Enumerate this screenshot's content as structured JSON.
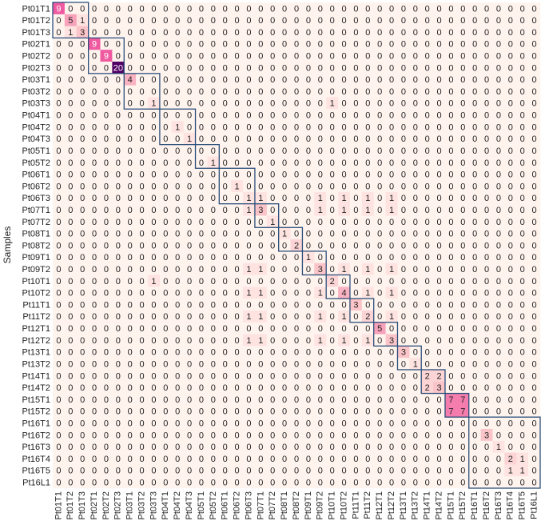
{
  "chart_data": {
    "type": "heatmap",
    "y_label": "Samples",
    "categories": [
      "Pt01T1",
      "Pt01T2",
      "Pt01T3",
      "Pt02T1",
      "Pt02T2",
      "Pt02T3",
      "Pt03T1",
      "Pt03T2",
      "Pt03T3",
      "Pt04T1",
      "Pt04T2",
      "Pt04T3",
      "Pt05T1",
      "Pt05T2",
      "Pt06T1",
      "Pt06T2",
      "Pt06T3",
      "Pt07T1",
      "Pt07T2",
      "Pt08T1",
      "Pt08T2",
      "Pt09T1",
      "Pt09T2",
      "Pt10T1",
      "Pt10T2",
      "Pt11T1",
      "Pt11T2",
      "Pt12T1",
      "Pt12T2",
      "Pt13T1",
      "Pt13T2",
      "Pt14T1",
      "Pt14T2",
      "Pt15T1",
      "Pt15T2",
      "Pt16T1",
      "Pt16T2",
      "Pt16T3",
      "Pt16T4",
      "Pt16T5",
      "Pt16L1"
    ],
    "values": [
      [
        9,
        0,
        0,
        0,
        0,
        0,
        0,
        0,
        0,
        0,
        0,
        0,
        0,
        0,
        0,
        0,
        0,
        0,
        0,
        0,
        0,
        0,
        0,
        0,
        0,
        0,
        0,
        0,
        0,
        0,
        0,
        0,
        0,
        0,
        0,
        0,
        0,
        0,
        0,
        0,
        0
      ],
      [
        0,
        5,
        1,
        0,
        0,
        0,
        0,
        0,
        0,
        0,
        0,
        0,
        0,
        0,
        0,
        0,
        0,
        0,
        0,
        0,
        0,
        0,
        0,
        0,
        0,
        0,
        0,
        0,
        0,
        0,
        0,
        0,
        0,
        0,
        0,
        0,
        0,
        0,
        0,
        0,
        0
      ],
      [
        0,
        1,
        3,
        0,
        0,
        0,
        0,
        0,
        0,
        0,
        0,
        0,
        0,
        0,
        0,
        0,
        0,
        0,
        0,
        0,
        0,
        0,
        0,
        0,
        0,
        0,
        0,
        0,
        0,
        0,
        0,
        0,
        0,
        0,
        0,
        0,
        0,
        0,
        0,
        0,
        0
      ],
      [
        0,
        0,
        0,
        9,
        0,
        0,
        0,
        0,
        0,
        0,
        0,
        0,
        0,
        0,
        0,
        0,
        0,
        0,
        0,
        0,
        0,
        0,
        0,
        0,
        0,
        0,
        0,
        0,
        0,
        0,
        0,
        0,
        0,
        0,
        0,
        0,
        0,
        0,
        0,
        0,
        0
      ],
      [
        0,
        0,
        0,
        0,
        9,
        0,
        0,
        0,
        0,
        0,
        0,
        0,
        0,
        0,
        0,
        0,
        0,
        0,
        0,
        0,
        0,
        0,
        0,
        0,
        0,
        0,
        0,
        0,
        0,
        0,
        0,
        0,
        0,
        0,
        0,
        0,
        0,
        0,
        0,
        0,
        0
      ],
      [
        0,
        0,
        0,
        0,
        0,
        20,
        0,
        0,
        0,
        0,
        0,
        0,
        0,
        0,
        0,
        0,
        0,
        0,
        0,
        0,
        0,
        0,
        0,
        0,
        0,
        0,
        0,
        0,
        0,
        0,
        0,
        0,
        0,
        0,
        0,
        0,
        0,
        0,
        0,
        0,
        0
      ],
      [
        0,
        0,
        0,
        0,
        0,
        0,
        4,
        0,
        0,
        0,
        0,
        0,
        0,
        0,
        0,
        0,
        0,
        0,
        0,
        0,
        0,
        0,
        0,
        0,
        0,
        0,
        0,
        0,
        0,
        0,
        0,
        0,
        0,
        0,
        0,
        0,
        0,
        0,
        0,
        0,
        0
      ],
      [
        0,
        0,
        0,
        0,
        0,
        0,
        0,
        0,
        0,
        0,
        0,
        0,
        0,
        0,
        0,
        0,
        0,
        0,
        0,
        0,
        0,
        0,
        0,
        0,
        0,
        0,
        0,
        0,
        0,
        0,
        0,
        0,
        0,
        0,
        0,
        0,
        0,
        0,
        0,
        0,
        0
      ],
      [
        0,
        0,
        0,
        0,
        0,
        0,
        0,
        0,
        1,
        0,
        0,
        0,
        0,
        0,
        0,
        0,
        0,
        0,
        0,
        0,
        0,
        0,
        0,
        1,
        0,
        0,
        0,
        0,
        0,
        0,
        0,
        0,
        0,
        0,
        0,
        0,
        0,
        0,
        0,
        0,
        0
      ],
      [
        0,
        0,
        0,
        0,
        0,
        0,
        0,
        0,
        0,
        0,
        0,
        0,
        0,
        0,
        0,
        0,
        0,
        0,
        0,
        0,
        0,
        0,
        0,
        0,
        0,
        0,
        0,
        0,
        0,
        0,
        0,
        0,
        0,
        0,
        0,
        0,
        0,
        0,
        0,
        0,
        0
      ],
      [
        0,
        0,
        0,
        0,
        0,
        0,
        0,
        0,
        0,
        0,
        1,
        0,
        0,
        0,
        0,
        0,
        0,
        0,
        0,
        0,
        0,
        0,
        0,
        0,
        0,
        0,
        0,
        0,
        0,
        0,
        0,
        0,
        0,
        0,
        0,
        0,
        0,
        0,
        0,
        0,
        0
      ],
      [
        0,
        0,
        0,
        0,
        0,
        0,
        0,
        0,
        0,
        0,
        0,
        1,
        0,
        0,
        0,
        0,
        0,
        0,
        0,
        0,
        0,
        0,
        0,
        0,
        0,
        0,
        0,
        0,
        0,
        0,
        0,
        0,
        0,
        0,
        0,
        0,
        0,
        0,
        0,
        0,
        0
      ],
      [
        0,
        0,
        0,
        0,
        0,
        0,
        0,
        0,
        0,
        0,
        0,
        0,
        0,
        0,
        0,
        0,
        0,
        0,
        0,
        0,
        0,
        0,
        0,
        0,
        0,
        0,
        0,
        0,
        0,
        0,
        0,
        0,
        0,
        0,
        0,
        0,
        0,
        0,
        0,
        0,
        0
      ],
      [
        0,
        0,
        0,
        0,
        0,
        0,
        0,
        0,
        0,
        0,
        0,
        0,
        0,
        1,
        0,
        0,
        0,
        0,
        0,
        0,
        0,
        0,
        0,
        0,
        0,
        0,
        0,
        0,
        0,
        0,
        0,
        0,
        0,
        0,
        0,
        0,
        0,
        0,
        0,
        0,
        0
      ],
      [
        0,
        0,
        0,
        0,
        0,
        0,
        0,
        0,
        0,
        0,
        0,
        0,
        0,
        0,
        0,
        0,
        0,
        0,
        0,
        0,
        0,
        0,
        0,
        0,
        0,
        0,
        0,
        0,
        0,
        0,
        0,
        0,
        0,
        0,
        0,
        0,
        0,
        0,
        0,
        0,
        0
      ],
      [
        0,
        0,
        0,
        0,
        0,
        0,
        0,
        0,
        0,
        0,
        0,
        0,
        0,
        0,
        0,
        1,
        0,
        0,
        0,
        0,
        0,
        0,
        0,
        0,
        0,
        0,
        0,
        0,
        0,
        0,
        0,
        0,
        0,
        0,
        0,
        0,
        0,
        0,
        0,
        0,
        0
      ],
      [
        0,
        0,
        0,
        0,
        0,
        0,
        0,
        0,
        0,
        0,
        0,
        0,
        0,
        0,
        0,
        0,
        1,
        1,
        0,
        0,
        0,
        0,
        1,
        0,
        1,
        0,
        1,
        0,
        1,
        0,
        0,
        0,
        0,
        0,
        0,
        0,
        0,
        0,
        0,
        0,
        0
      ],
      [
        0,
        0,
        0,
        0,
        0,
        0,
        0,
        0,
        0,
        0,
        0,
        0,
        0,
        0,
        0,
        0,
        1,
        3,
        0,
        0,
        0,
        0,
        1,
        0,
        1,
        0,
        1,
        0,
        1,
        0,
        0,
        0,
        0,
        0,
        0,
        0,
        0,
        0,
        0,
        0,
        0
      ],
      [
        0,
        0,
        0,
        0,
        0,
        0,
        0,
        0,
        0,
        0,
        0,
        0,
        0,
        0,
        0,
        0,
        0,
        0,
        1,
        0,
        0,
        0,
        0,
        0,
        0,
        0,
        0,
        0,
        0,
        0,
        0,
        0,
        0,
        0,
        0,
        0,
        0,
        0,
        0,
        0,
        0
      ],
      [
        0,
        0,
        0,
        0,
        0,
        0,
        0,
        0,
        0,
        0,
        0,
        0,
        0,
        0,
        0,
        0,
        0,
        0,
        0,
        1,
        0,
        0,
        0,
        0,
        0,
        0,
        0,
        0,
        0,
        0,
        0,
        0,
        0,
        0,
        0,
        0,
        0,
        0,
        0,
        0,
        0
      ],
      [
        0,
        0,
        0,
        0,
        0,
        0,
        0,
        0,
        0,
        0,
        0,
        0,
        0,
        0,
        0,
        0,
        0,
        0,
        0,
        0,
        2,
        0,
        0,
        0,
        0,
        0,
        0,
        0,
        0,
        0,
        0,
        0,
        0,
        0,
        0,
        0,
        0,
        0,
        0,
        0,
        0
      ],
      [
        0,
        0,
        0,
        0,
        0,
        0,
        0,
        0,
        0,
        0,
        0,
        0,
        0,
        0,
        0,
        0,
        0,
        0,
        0,
        0,
        0,
        1,
        0,
        0,
        0,
        0,
        0,
        0,
        0,
        0,
        0,
        0,
        0,
        0,
        0,
        0,
        0,
        0,
        0,
        0,
        0
      ],
      [
        0,
        0,
        0,
        0,
        0,
        0,
        0,
        0,
        0,
        0,
        0,
        0,
        0,
        0,
        0,
        0,
        1,
        1,
        0,
        0,
        0,
        0,
        3,
        0,
        1,
        0,
        1,
        0,
        1,
        0,
        0,
        0,
        0,
        0,
        0,
        0,
        0,
        0,
        0,
        0,
        0
      ],
      [
        0,
        0,
        0,
        0,
        0,
        0,
        0,
        0,
        1,
        0,
        0,
        0,
        0,
        0,
        0,
        0,
        0,
        0,
        0,
        0,
        0,
        0,
        0,
        2,
        0,
        0,
        0,
        0,
        0,
        0,
        0,
        0,
        0,
        0,
        0,
        0,
        0,
        0,
        0,
        0,
        0
      ],
      [
        0,
        0,
        0,
        0,
        0,
        0,
        0,
        0,
        0,
        0,
        0,
        0,
        0,
        0,
        0,
        0,
        1,
        1,
        0,
        0,
        0,
        0,
        1,
        0,
        4,
        0,
        1,
        0,
        1,
        0,
        0,
        0,
        0,
        0,
        0,
        0,
        0,
        0,
        0,
        0,
        0
      ],
      [
        0,
        0,
        0,
        0,
        0,
        0,
        0,
        0,
        0,
        0,
        0,
        0,
        0,
        0,
        0,
        0,
        0,
        0,
        0,
        0,
        0,
        0,
        0,
        0,
        0,
        3,
        0,
        0,
        0,
        0,
        0,
        0,
        0,
        0,
        0,
        0,
        0,
        0,
        0,
        0,
        0
      ],
      [
        0,
        0,
        0,
        0,
        0,
        0,
        0,
        0,
        0,
        0,
        0,
        0,
        0,
        0,
        0,
        0,
        1,
        1,
        0,
        0,
        0,
        0,
        1,
        0,
        1,
        0,
        2,
        0,
        1,
        0,
        0,
        0,
        0,
        0,
        0,
        0,
        0,
        0,
        0,
        0,
        0
      ],
      [
        0,
        0,
        0,
        0,
        0,
        0,
        0,
        0,
        0,
        0,
        0,
        0,
        0,
        0,
        0,
        0,
        0,
        0,
        0,
        0,
        0,
        0,
        0,
        0,
        0,
        0,
        0,
        5,
        0,
        0,
        0,
        0,
        0,
        0,
        0,
        0,
        0,
        0,
        0,
        0,
        0
      ],
      [
        0,
        0,
        0,
        0,
        0,
        0,
        0,
        0,
        0,
        0,
        0,
        0,
        0,
        0,
        0,
        0,
        1,
        1,
        0,
        0,
        0,
        0,
        1,
        0,
        1,
        0,
        1,
        0,
        3,
        0,
        0,
        0,
        0,
        0,
        0,
        0,
        0,
        0,
        0,
        0,
        0
      ],
      [
        0,
        0,
        0,
        0,
        0,
        0,
        0,
        0,
        0,
        0,
        0,
        0,
        0,
        0,
        0,
        0,
        0,
        0,
        0,
        0,
        0,
        0,
        0,
        0,
        0,
        0,
        0,
        0,
        0,
        3,
        0,
        0,
        0,
        0,
        0,
        0,
        0,
        0,
        0,
        0,
        0
      ],
      [
        0,
        0,
        0,
        0,
        0,
        0,
        0,
        0,
        0,
        0,
        0,
        0,
        0,
        0,
        0,
        0,
        0,
        0,
        0,
        0,
        0,
        0,
        0,
        0,
        0,
        0,
        0,
        0,
        0,
        0,
        1,
        0,
        0,
        0,
        0,
        0,
        0,
        0,
        0,
        0,
        0
      ],
      [
        0,
        0,
        0,
        0,
        0,
        0,
        0,
        0,
        0,
        0,
        0,
        0,
        0,
        0,
        0,
        0,
        0,
        0,
        0,
        0,
        0,
        0,
        0,
        0,
        0,
        0,
        0,
        0,
        0,
        0,
        0,
        2,
        2,
        0,
        0,
        0,
        0,
        0,
        0,
        0,
        0
      ],
      [
        0,
        0,
        0,
        0,
        0,
        0,
        0,
        0,
        0,
        0,
        0,
        0,
        0,
        0,
        0,
        0,
        0,
        0,
        0,
        0,
        0,
        0,
        0,
        0,
        0,
        0,
        0,
        0,
        0,
        0,
        0,
        2,
        3,
        0,
        0,
        0,
        0,
        0,
        0,
        0,
        0
      ],
      [
        0,
        0,
        0,
        0,
        0,
        0,
        0,
        0,
        0,
        0,
        0,
        0,
        0,
        0,
        0,
        0,
        0,
        0,
        0,
        0,
        0,
        0,
        0,
        0,
        0,
        0,
        0,
        0,
        0,
        0,
        0,
        0,
        0,
        7,
        7,
        0,
        0,
        0,
        0,
        0,
        0
      ],
      [
        0,
        0,
        0,
        0,
        0,
        0,
        0,
        0,
        0,
        0,
        0,
        0,
        0,
        0,
        0,
        0,
        0,
        0,
        0,
        0,
        0,
        0,
        0,
        0,
        0,
        0,
        0,
        0,
        0,
        0,
        0,
        0,
        0,
        7,
        7,
        0,
        0,
        0,
        0,
        0,
        0
      ],
      [
        0,
        0,
        0,
        0,
        0,
        0,
        0,
        0,
        0,
        0,
        0,
        0,
        0,
        0,
        0,
        0,
        0,
        0,
        0,
        0,
        0,
        0,
        0,
        0,
        0,
        0,
        0,
        0,
        0,
        0,
        0,
        0,
        0,
        0,
        0,
        0,
        0,
        0,
        0,
        0,
        0
      ],
      [
        0,
        0,
        0,
        0,
        0,
        0,
        0,
        0,
        0,
        0,
        0,
        0,
        0,
        0,
        0,
        0,
        0,
        0,
        0,
        0,
        0,
        0,
        0,
        0,
        0,
        0,
        0,
        0,
        0,
        0,
        0,
        0,
        0,
        0,
        0,
        0,
        3,
        0,
        0,
        0,
        0
      ],
      [
        0,
        0,
        0,
        0,
        0,
        0,
        0,
        0,
        0,
        0,
        0,
        0,
        0,
        0,
        0,
        0,
        0,
        0,
        0,
        0,
        0,
        0,
        0,
        0,
        0,
        0,
        0,
        0,
        0,
        0,
        0,
        0,
        0,
        0,
        0,
        0,
        0,
        1,
        0,
        0,
        0
      ],
      [
        0,
        0,
        0,
        0,
        0,
        0,
        0,
        0,
        0,
        0,
        0,
        0,
        0,
        0,
        0,
        0,
        0,
        0,
        0,
        0,
        0,
        0,
        0,
        0,
        0,
        0,
        0,
        0,
        0,
        0,
        0,
        0,
        0,
        0,
        0,
        0,
        0,
        0,
        2,
        1,
        0
      ],
      [
        0,
        0,
        0,
        0,
        0,
        0,
        0,
        0,
        0,
        0,
        0,
        0,
        0,
        0,
        0,
        0,
        0,
        0,
        0,
        0,
        0,
        0,
        0,
        0,
        0,
        0,
        0,
        0,
        0,
        0,
        0,
        0,
        0,
        0,
        0,
        0,
        0,
        0,
        1,
        1,
        0
      ],
      [
        0,
        0,
        0,
        0,
        0,
        0,
        0,
        0,
        0,
        0,
        0,
        0,
        0,
        0,
        0,
        0,
        0,
        0,
        0,
        0,
        0,
        0,
        0,
        0,
        0,
        0,
        0,
        0,
        0,
        0,
        0,
        0,
        0,
        0,
        0,
        0,
        0,
        0,
        0,
        0,
        0
      ]
    ]
  }
}
